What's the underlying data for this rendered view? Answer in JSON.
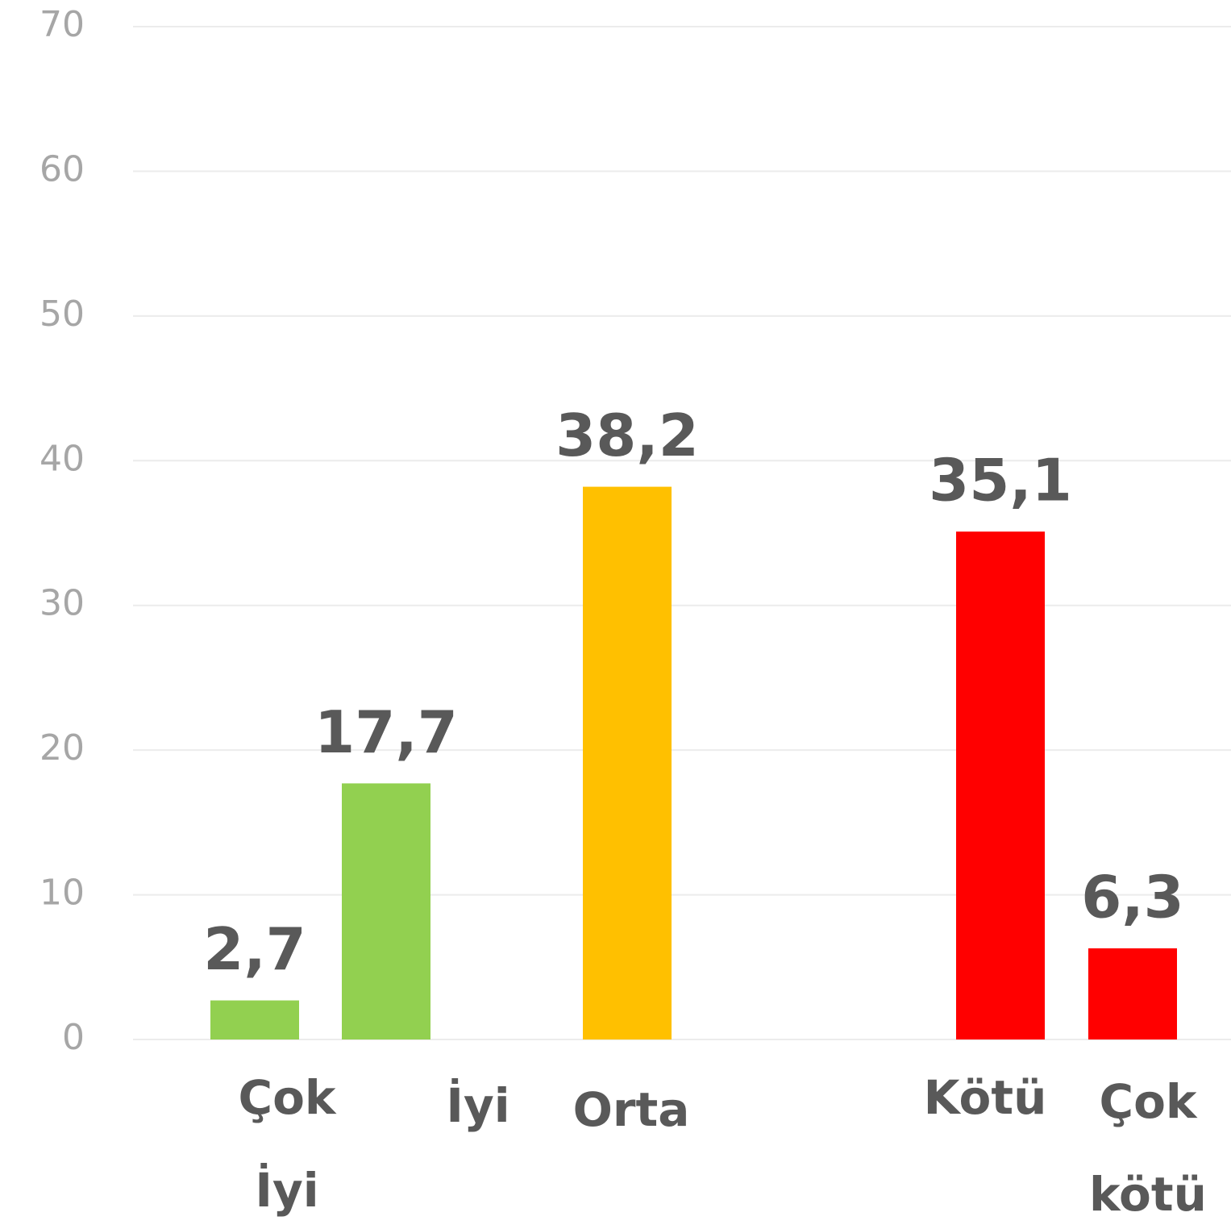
{
  "chart_data": {
    "type": "bar",
    "categories": [
      "Çok İyi",
      "İyi",
      "Orta",
      "Kötü",
      "Çok kötü"
    ],
    "values": [
      2.7,
      17.7,
      38.2,
      35.1,
      6.3
    ],
    "value_labels": [
      "2,7",
      "17,7",
      "38,2",
      "35,1",
      "6,3"
    ],
    "colors": [
      "#92d050",
      "#92d050",
      "#ffc000",
      "#ff0000",
      "#ff0000"
    ],
    "ylim": [
      0,
      70
    ],
    "yticks": [
      0,
      10,
      20,
      30,
      40,
      50,
      60,
      70
    ],
    "grid": true
  }
}
